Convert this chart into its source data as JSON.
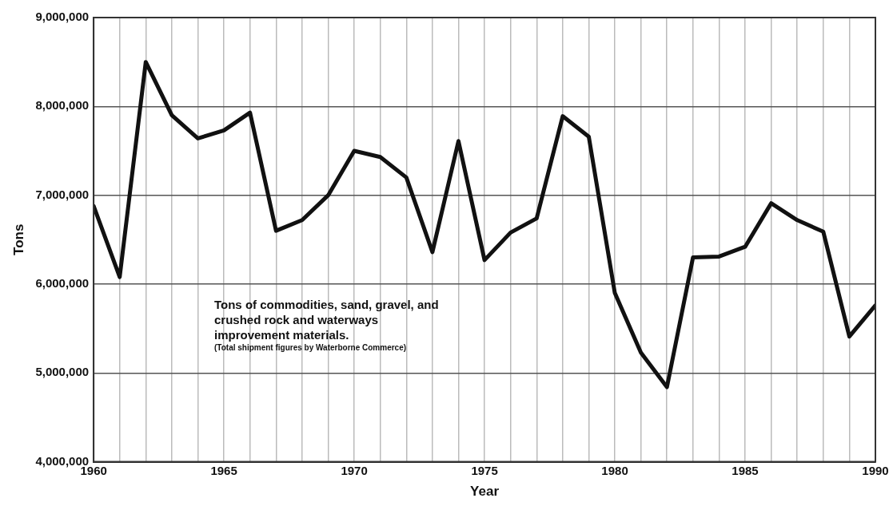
{
  "chart_data": {
    "type": "line",
    "xlabel": "Year",
    "ylabel": "Tons",
    "x": [
      1960,
      1961,
      1962,
      1963,
      1964,
      1965,
      1966,
      1967,
      1968,
      1969,
      1970,
      1971,
      1972,
      1973,
      1974,
      1975,
      1976,
      1977,
      1978,
      1979,
      1980,
      1981,
      1982,
      1983,
      1984,
      1985,
      1986,
      1987,
      1988,
      1989,
      1990
    ],
    "series": [
      {
        "color": "#111111",
        "values": [
          6880000,
          6080000,
          8500000,
          7900000,
          7640000,
          7730000,
          7930000,
          6600000,
          6720000,
          7000000,
          7500000,
          7430000,
          7200000,
          6360000,
          7610000,
          6270000,
          6580000,
          6740000,
          7890000,
          7660000,
          5900000,
          5230000,
          4840000,
          6300000,
          6310000,
          6420000,
          6910000,
          6720000,
          6590000,
          5410000,
          5760000
        ]
      }
    ],
    "xlim": [
      1960,
      1990
    ],
    "xticks": [
      1960,
      {
        "value": 1961,
        "label": null
      },
      {
        "value": 1962,
        "label": null
      },
      {
        "value": 1963,
        "label": null
      },
      {
        "value": 1964,
        "label": null
      },
      1965,
      {
        "value": 1966,
        "label": null
      },
      {
        "value": 1967,
        "label": null
      },
      {
        "value": 1968,
        "label": null
      },
      {
        "value": 1969,
        "label": null
      },
      1970,
      {
        "value": 1971,
        "label": null
      },
      {
        "value": 1972,
        "label": null
      },
      {
        "value": 1973,
        "label": null
      },
      {
        "value": 1974,
        "label": null
      },
      1975,
      {
        "value": 1976,
        "label": null
      },
      {
        "value": 1977,
        "label": null
      },
      {
        "value": 1978,
        "label": null
      },
      {
        "value": 1979,
        "label": null
      },
      1980,
      {
        "value": 1981,
        "label": null
      },
      {
        "value": 1982,
        "label": null
      },
      {
        "value": 1983,
        "label": null
      },
      {
        "value": 1984,
        "label": null
      },
      1985,
      {
        "value": 1986,
        "label": null
      },
      {
        "value": 1987,
        "label": null
      },
      {
        "value": 1988,
        "label": null
      },
      {
        "value": 1989,
        "label": null
      },
      1990
    ],
    "ylim": [
      4000000,
      9000000
    ],
    "yticks": [
      {
        "value": 4000000,
        "label": "4,000,000"
      },
      {
        "value": 5000000,
        "label": "5,000,000"
      },
      {
        "value": 6000000,
        "label": "6,000,000"
      },
      {
        "value": 7000000,
        "label": "7,000,000"
      },
      {
        "value": 8000000,
        "label": "8,000,000"
      },
      {
        "value": 9000000,
        "label": "9,000,000"
      }
    ],
    "grid": true,
    "marker": "none",
    "line_style": "solid",
    "annotations": [
      "Tons of commodities, sand, gravel, and crushed rock and waterways improvement materials.",
      "(Total shipment figures by Waterborne Commerce)"
    ]
  }
}
